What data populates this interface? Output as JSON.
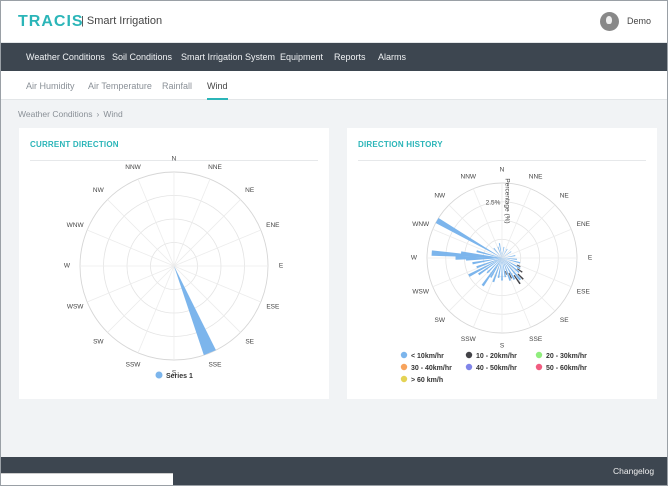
{
  "app": {
    "logo": "TRACIS",
    "subtitle": "| Smart Irrigation",
    "user": "Demo"
  },
  "main_nav": [
    "Weather Conditions",
    "Soil Conditions",
    "Smart Irrigation System",
    "Equipment",
    "Reports",
    "Alarms"
  ],
  "sub_nav": [
    "Air Humidity",
    "Air Temperature",
    "Rainfall",
    "Wind"
  ],
  "sub_nav_active": "Wind",
  "breadcrumb": {
    "parent": "Weather Conditions",
    "current": "Wind"
  },
  "cards": {
    "current": "CURRENT DIRECTION",
    "history": "DIRECTION HISTORY"
  },
  "footer": {
    "changelog": "Changelog"
  },
  "colors": {
    "accent": "#2bb5b8",
    "nav": "#3d4650",
    "series_blue": "#7cb5ec"
  },
  "chart_data": [
    {
      "type": "polar-bar",
      "title": "CURRENT DIRECTION",
      "directions": [
        "N",
        "NNE",
        "NE",
        "ENE",
        "E",
        "ESE",
        "SE",
        "SSE",
        "S",
        "SSW",
        "SW",
        "WSW",
        "W",
        "WNW",
        "NW",
        "NNW"
      ],
      "series": [
        {
          "name": "Series 1",
          "direction": "SSE",
          "value": 1.0
        }
      ],
      "legend": [
        "Series 1"
      ]
    },
    {
      "type": "wind-rose",
      "title": "DIRECTION HISTORY",
      "radial_label": "Percentage (%)",
      "radial_tick": "2.5%",
      "directions": [
        "N",
        "NNE",
        "NE",
        "ENE",
        "E",
        "ESE",
        "SE",
        "SSE",
        "S",
        "SSW",
        "SW",
        "WSW",
        "W",
        "WNW",
        "NW",
        "NNW"
      ],
      "legend": [
        "< 10km/hr",
        "10 - 20km/hr",
        "20 - 30km/hr",
        "30 - 40km/hr",
        "40 - 50km/hr",
        "50 - 60km/hr",
        "> 60 km/h"
      ],
      "legend_colors": [
        "#7cb5ec",
        "#434348",
        "#90ed7d",
        "#f7a35c",
        "#8085e9",
        "#f15c80",
        "#e4d354"
      ]
    }
  ]
}
